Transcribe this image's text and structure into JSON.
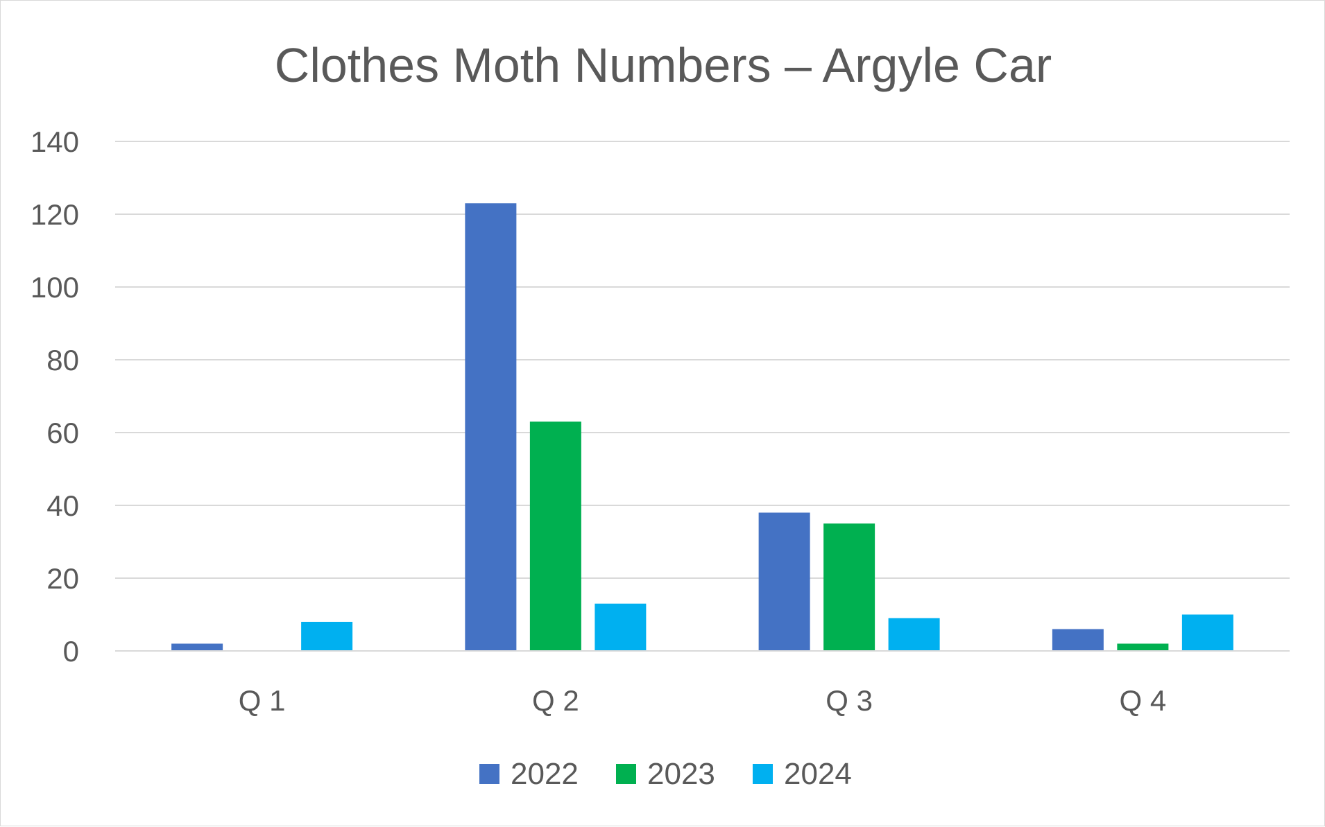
{
  "chart_data": {
    "type": "bar",
    "title": "Clothes Moth Numbers – Argyle Car",
    "xlabel": "",
    "ylabel": "",
    "categories": [
      "Q 1",
      "Q 2",
      "Q 3",
      "Q 4"
    ],
    "ylim": [
      0,
      140
    ],
    "yticks": [
      0,
      20,
      40,
      60,
      80,
      100,
      120,
      140
    ],
    "yticks_labels": [
      "0",
      "20",
      "40",
      "60",
      "80",
      "100",
      "120",
      "140"
    ],
    "grid": true,
    "legend_position": "bottom",
    "series": [
      {
        "name": "2022",
        "color": "#4472C4",
        "values": [
          2,
          123,
          38,
          6
        ]
      },
      {
        "name": "2023",
        "color": "#00B050",
        "values": [
          0,
          63,
          35,
          2
        ]
      },
      {
        "name": "2024",
        "color": "#00B0F0",
        "values": [
          8,
          13,
          9,
          10
        ]
      }
    ]
  }
}
